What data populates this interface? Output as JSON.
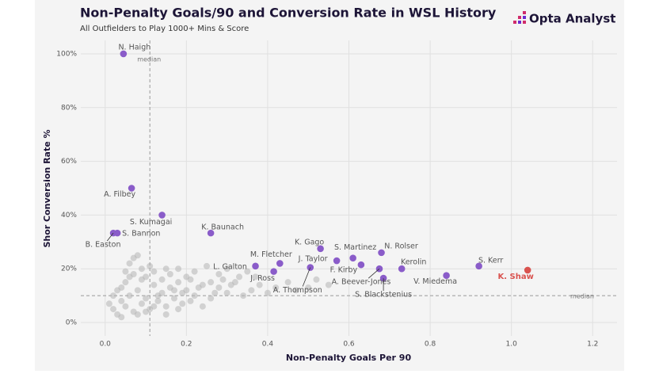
{
  "chart_data": {
    "type": "scatter",
    "title": "Non-Penalty Goals/90 and Conversion Rate in WSL History",
    "subtitle": "All Outfielders to Play 1000+ Mins & Score",
    "brand": "Opta Analyst",
    "x_label": "Non-Penalty Goals Per 90",
    "y_label": "Shor Conversion Rate %",
    "xlim": [
      -0.06,
      1.26
    ],
    "ylim": [
      -5,
      105
    ],
    "xticks": [
      {
        "value": 0,
        "label": "0.0"
      },
      0.2,
      0.4,
      0.6,
      0.8,
      {
        "value": 1,
        "label": "1.0"
      },
      1.2
    ],
    "yticks": [
      {
        "value": 0,
        "label": "0%"
      },
      {
        "value": 20,
        "label": "20%"
      },
      {
        "value": 40,
        "label": "40%"
      },
      {
        "value": 60,
        "label": "60%"
      },
      {
        "value": 80,
        "label": "80%"
      },
      {
        "value": 100,
        "label": "100%"
      }
    ],
    "grid": true,
    "median": {
      "x": 0.11,
      "y": 10,
      "label": "median"
    },
    "series": [
      {
        "color": "#b5b5b5",
        "x": [
          0.02,
          0.03,
          0.04,
          0.05,
          0.06,
          0.07,
          0.08,
          0.09,
          0.1,
          0.11,
          0.12,
          0.13,
          0.14,
          0.15,
          0.16,
          0.17,
          0.18,
          0.19,
          0.2,
          0.22,
          0.24,
          0.26,
          0.28,
          0.3,
          0.32,
          0.34,
          0.36,
          0.38,
          0.4,
          0.45,
          0.5,
          0.55,
          0.03,
          0.05,
          0.07,
          0.09,
          0.06,
          0.08,
          0.1,
          0.12,
          0.14,
          0.16,
          0.18,
          0.2,
          0.22,
          0.25,
          0.28,
          0.3,
          0.33,
          0.35,
          0.02,
          0.04,
          0.08,
          0.1,
          0.12,
          0.15,
          0.18,
          0.01,
          0.13,
          0.17,
          0.21,
          0.24,
          0.27,
          0.11,
          0.09,
          0.05,
          0.07,
          0.04,
          0.19,
          0.23,
          0.29,
          0.31,
          0.37,
          0.42,
          0.47,
          0.52,
          0.26,
          0.21,
          0.15,
          0.06
        ],
        "y": [
          5,
          3,
          8,
          6,
          10,
          4,
          12,
          7,
          9,
          5,
          14,
          8,
          11,
          6,
          13,
          9,
          15,
          7,
          12,
          10,
          14,
          9,
          13,
          11,
          15,
          10,
          12,
          14,
          11,
          15,
          13,
          14,
          12,
          15,
          18,
          20,
          22,
          25,
          17,
          19,
          16,
          18,
          20,
          17,
          19,
          21,
          18,
          20,
          17,
          19,
          10,
          2,
          3,
          4,
          6,
          3,
          5,
          7,
          10,
          12,
          8,
          6,
          11,
          21,
          16,
          19,
          24,
          13,
          11,
          13,
          16,
          14,
          17,
          13,
          12,
          16,
          15,
          16,
          20,
          17
        ]
      },
      {
        "colors": [
          "#8a5cc9",
          "#8a5cc9",
          "#8a5cc9",
          "#8a5cc9",
          "#8a5cc9",
          "#8a5cc9",
          "#8a5cc9",
          "#8a5cc9",
          "#8a5cc9",
          "#8a5cc9",
          "#d9534f",
          "#8a5cc9",
          "#8a5cc9",
          "#8a5cc9",
          "#8a5cc9",
          "#8a5cc9",
          "#8a5cc9",
          "#8a5cc9",
          "#8a5cc9",
          "#8a5cc9",
          "#8a5cc9"
        ],
        "labels": [
          "N. Haigh",
          "A. Filbey",
          "S. Kumagai",
          "B. Easton",
          "S. Bannon",
          "K. Baunach",
          "K. Gago",
          "S. Martinez",
          "N. Rolser",
          "S. Kerr",
          "K. Shaw",
          "Kerolin",
          "V. Miedema",
          "J. Taylor",
          "M. Fletcher",
          "L. Galton",
          "J. Ross",
          "A. Thompson",
          "F. Kirby",
          "A. Beever-Jones",
          "S. Blackstenius"
        ],
        "x": [
          0.045,
          0.065,
          0.14,
          0.02,
          0.03,
          0.26,
          0.53,
          0.61,
          0.68,
          0.92,
          1.04,
          0.73,
          0.84,
          0.57,
          0.43,
          0.37,
          0.415,
          0.505,
          0.63,
          0.675,
          0.685
        ],
        "y": [
          100,
          50,
          40,
          33.3,
          33.3,
          33.3,
          27.5,
          24,
          26,
          21,
          19.5,
          20,
          17.5,
          23,
          22,
          21,
          19,
          20.5,
          21.5,
          20,
          16.5
        ]
      }
    ]
  }
}
